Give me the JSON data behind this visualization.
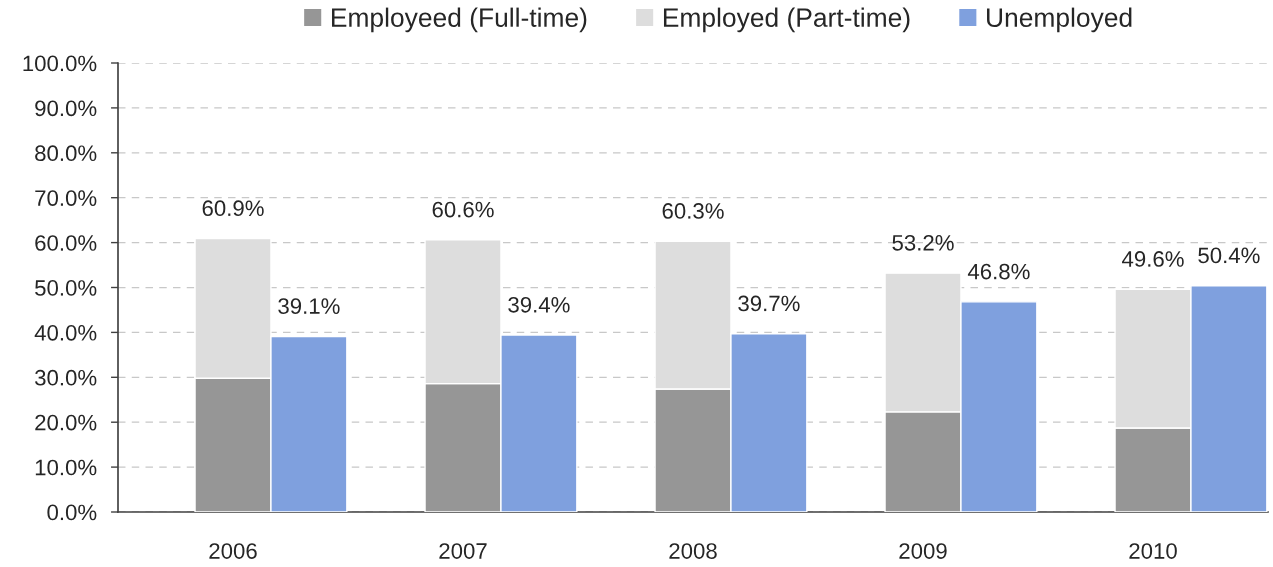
{
  "chart_data": [
    {
      "type": "bar",
      "stacked": true,
      "categories": [
        "2006",
        "2007",
        "2008",
        "2009",
        "2010"
      ],
      "series": [
        {
          "name": "Employeed (Full-time)",
          "color": "#969696",
          "values": [
            29.8,
            28.6,
            27.4,
            22.3,
            18.7
          ]
        },
        {
          "name": "Employed (Part-time)",
          "color": "#dddddd",
          "values": [
            31.1,
            32.0,
            32.9,
            30.9,
            30.9
          ]
        }
      ],
      "totals": [
        "60.9%",
        "60.6%",
        "60.3%",
        "53.2%",
        "49.6%"
      ],
      "ylim": [
        0,
        100
      ],
      "yticks": [
        {
          "value": 0,
          "label": "0.0%"
        },
        {
          "value": 10,
          "label": "10.0%"
        },
        {
          "value": 20,
          "label": "20.0%"
        },
        {
          "value": 30,
          "label": "30.0%"
        },
        {
          "value": 40,
          "label": "40.0%"
        },
        {
          "value": 50,
          "label": "50.0%"
        },
        {
          "value": 60,
          "label": "60.0%"
        },
        {
          "value": 70,
          "label": "70.0%"
        },
        {
          "value": 80,
          "label": "80.0%"
        },
        {
          "value": 90,
          "label": "90.0%"
        },
        {
          "value": 100,
          "label": "100.0%"
        }
      ],
      "grid": "y",
      "legend": "top"
    },
    {
      "type": "bar",
      "categories": [
        "2006",
        "2007",
        "2008",
        "2009",
        "2010"
      ],
      "series": [
        {
          "name": "Unemployed",
          "color": "#7fa0de",
          "values": [
            39.1,
            39.4,
            39.7,
            46.8,
            50.4
          ],
          "value_labels": [
            "39.1%",
            "39.4%",
            "39.7%",
            "46.8%",
            "50.4%"
          ]
        }
      ],
      "ylim": [
        0,
        100
      ],
      "tick_labels": false,
      "legend": "top"
    }
  ]
}
